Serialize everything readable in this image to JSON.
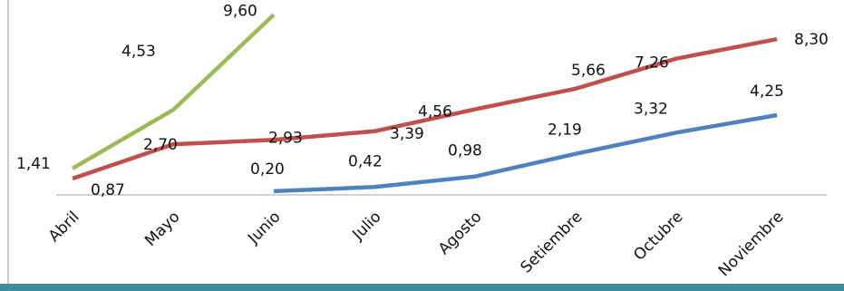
{
  "chart_data": {
    "type": "line",
    "title": "",
    "xlabel": "",
    "ylabel": "",
    "categories": [
      "Abril",
      "Mayo",
      "Junio",
      "Julio",
      "Agosto",
      "Setiembre",
      "Octubre",
      "Noviembre"
    ],
    "ylim": [
      0,
      10
    ],
    "grid": false,
    "legend": "none",
    "series": [
      {
        "color": "#9bbb59",
        "values": [
          1.41,
          4.53,
          9.6,
          null,
          null,
          null,
          null,
          null
        ],
        "labels": [
          "1,41",
          "4,53",
          "9,60",
          "",
          "",
          "",
          "",
          ""
        ]
      },
      {
        "color": "#c0504d",
        "values": [
          0.87,
          2.7,
          2.93,
          3.39,
          4.56,
          5.66,
          7.26,
          8.3
        ],
        "labels": [
          "0,87",
          "2,70",
          "2,93",
          "3,39",
          "4,56",
          "5,66",
          "7,26",
          "8,30"
        ]
      },
      {
        "color": "#4f81bd",
        "values": [
          null,
          null,
          0.2,
          0.42,
          0.98,
          2.19,
          3.32,
          4.25
        ],
        "labels": [
          "",
          "",
          "0,20",
          "0,42",
          "0,98",
          "2,19",
          "3,32",
          "4,25"
        ]
      }
    ]
  },
  "colors": {
    "axis": "#a6a6a6",
    "frame": "#c8c8c8",
    "footer_bar": "#3b8f9a"
  }
}
